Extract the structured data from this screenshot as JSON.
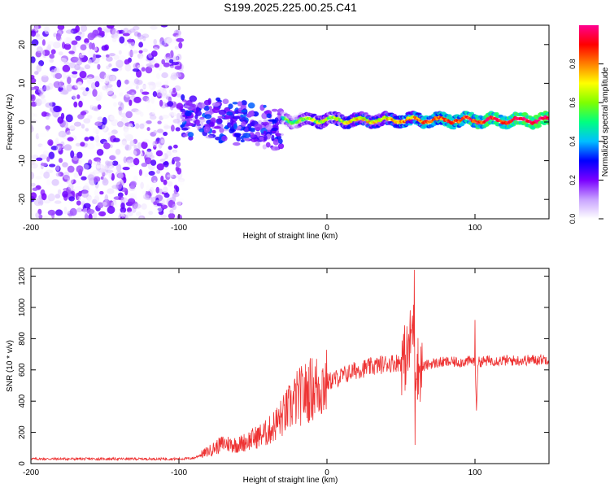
{
  "chart_data": [
    {
      "type": "heatmap",
      "title": "S199.2025.225.00.25.C41",
      "xlabel": "Height of straight line (km)",
      "ylabel": "Frequency (Hz)",
      "xlim": [
        -200,
        150
      ],
      "ylim": [
        -25,
        25
      ],
      "xticks": [
        -200,
        -100,
        0,
        100
      ],
      "yticks": [
        20,
        10,
        0,
        -10,
        -20
      ],
      "colorbar": {
        "label": "Normalized spectral amplitude",
        "range": [
          0,
          1
        ],
        "ticks": [
          "0.0",
          "0.2",
          "0.4",
          "0.6",
          "0.8"
        ],
        "tick_values": [
          0.0,
          0.2,
          0.4,
          0.6,
          0.8
        ],
        "colors": [
          "#ffffff",
          "#c8a2ff",
          "#7a00ff",
          "#0000ff",
          "#00bfff",
          "#00ff80",
          "#7fff00",
          "#ffff00",
          "#ff8000",
          "#ff0000",
          "#ff0090"
        ]
      },
      "description_series": [
        {
          "name": "noise",
          "x_range": [
            -200,
            -98
          ],
          "y_range": [
            -25,
            25
          ],
          "amplitude_range": [
            0.0,
            0.25
          ]
        },
        {
          "name": "transition",
          "x_range": [
            -98,
            -30
          ],
          "center_freq_start": 3,
          "center_freq_end": 0,
          "amplitude_range": [
            0.1,
            0.35
          ]
        },
        {
          "name": "signal",
          "x_range": [
            -30,
            150
          ],
          "center_freq": 0.5,
          "amplitude_range": [
            0.4,
            1.0
          ]
        }
      ]
    },
    {
      "type": "line",
      "xlabel": "Height of straight line (km)",
      "ylabel": "SNR (10 * v/v)",
      "xlim": [
        -200,
        150
      ],
      "ylim": [
        0,
        1250
      ],
      "xticks": [
        -200,
        -100,
        0,
        100
      ],
      "yticks": [
        0,
        200,
        400,
        600,
        800,
        1000,
        1200
      ],
      "color": "#ee3333",
      "series": [
        {
          "name": "SNR",
          "x": [
            -200,
            -180,
            -160,
            -140,
            -120,
            -100,
            -90,
            -80,
            -70,
            -60,
            -50,
            -40,
            -30,
            -20,
            -10,
            0,
            10,
            20,
            30,
            40,
            50,
            55,
            58,
            60,
            62,
            65,
            70,
            80,
            90,
            100,
            101,
            102,
            110,
            120,
            130,
            140,
            150
          ],
          "y": [
            30,
            30,
            30,
            30,
            30,
            30,
            35,
            80,
            130,
            120,
            160,
            200,
            300,
            420,
            480,
            520,
            560,
            600,
            620,
            640,
            650,
            700,
            900,
            650,
            600,
            620,
            640,
            650,
            650,
            660,
            360,
            650,
            660,
            660,
            660,
            665,
            670
          ]
        }
      ],
      "spikes": [
        {
          "x": 59,
          "y": 1240
        },
        {
          "x": 59.5,
          "y": 120
        },
        {
          "x": 101,
          "y": 340
        },
        {
          "x": 100,
          "y": 920
        }
      ]
    }
  ]
}
